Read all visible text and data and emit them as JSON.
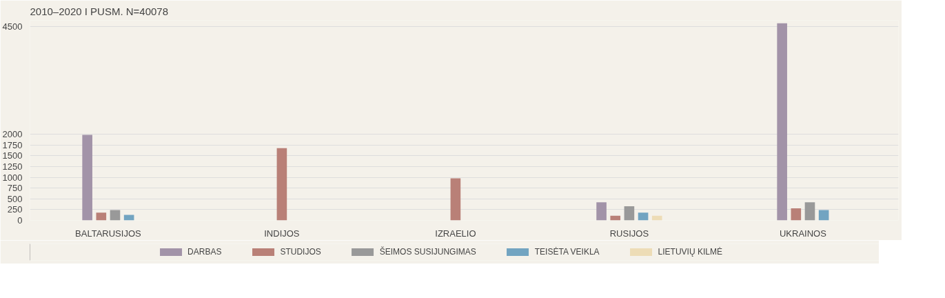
{
  "chart_data": {
    "type": "bar",
    "title": "2010–2020 I PUSM. N=40078",
    "categories": [
      "BALTARUSIJOS",
      "INDIJOS",
      "IZRAELIO",
      "RUSIJOS",
      "UKRAINOS"
    ],
    "series": [
      {
        "name": "DARBAS",
        "color": "#a293a8",
        "values": [
          1990,
          null,
          null,
          420,
          4580
        ]
      },
      {
        "name": "STUDIJOS",
        "color": "#b98077",
        "values": [
          180,
          1680,
          980,
          110,
          280
        ]
      },
      {
        "name": "ŠEIMOS SUSIJUNGIMAS",
        "color": "#999999",
        "values": [
          240,
          null,
          null,
          330,
          420
        ]
      },
      {
        "name": "TEISĖTA VEIKLA",
        "color": "#72a4c1",
        "values": [
          130,
          null,
          null,
          180,
          240
        ]
      },
      {
        "name": "LIETUVIŲ KILMĖ",
        "color": "#eddcb6",
        "values": [
          null,
          null,
          null,
          110,
          null
        ]
      }
    ],
    "ylim": [
      0,
      4650
    ],
    "yticks": [
      0,
      250,
      500,
      750,
      1000,
      1250,
      1500,
      1750,
      2000,
      4500
    ],
    "grid": "y",
    "legend": "bottom"
  }
}
